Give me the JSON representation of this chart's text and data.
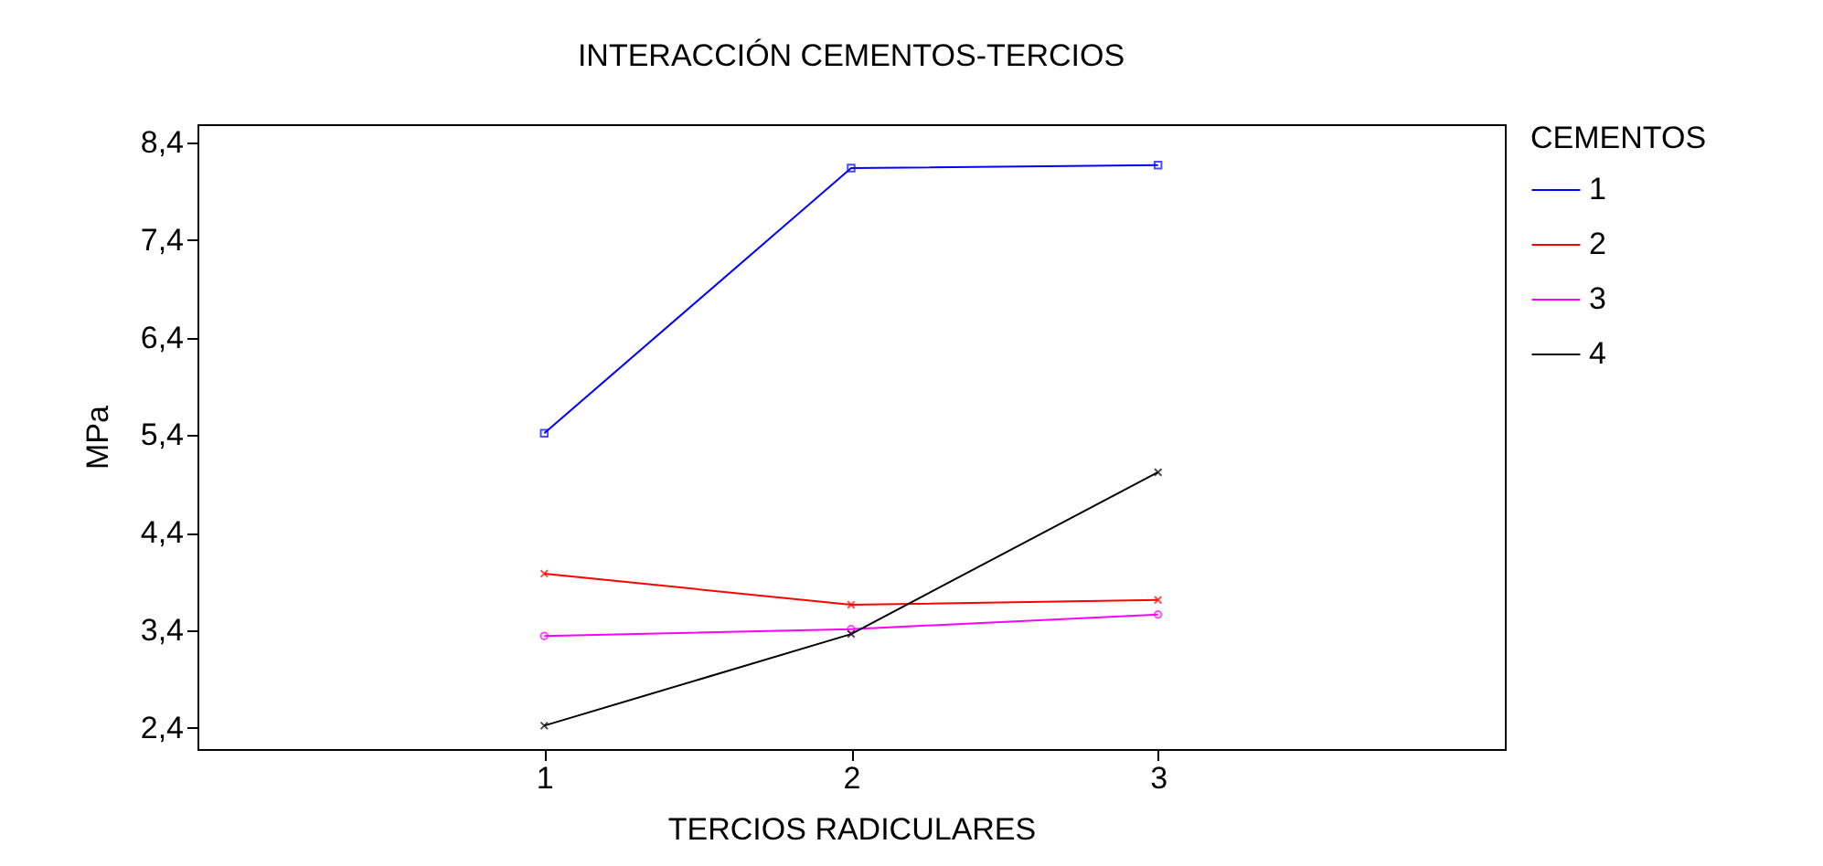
{
  "chart_data": {
    "type": "line",
    "title": "INTERACCIÓN CEMENTOS-TERCIOS",
    "xlabel": "TERCIOS RADICULARES",
    "ylabel": "MPa",
    "legend_title": "CEMENTOS",
    "x": [
      1,
      2,
      3
    ],
    "series": [
      {
        "name": "1",
        "color": "#0000ff",
        "marker": "square",
        "values": [
          5.42,
          8.14,
          8.17
        ]
      },
      {
        "name": "2",
        "color": "#ff0000",
        "marker": "cross",
        "values": [
          3.98,
          3.66,
          3.71
        ]
      },
      {
        "name": "3",
        "color": "#ff00ff",
        "marker": "circle",
        "values": [
          3.34,
          3.41,
          3.56
        ]
      },
      {
        "name": "4",
        "color": "#000000",
        "marker": "cross",
        "values": [
          2.42,
          3.36,
          5.02
        ]
      }
    ],
    "xlim": [
      -0.13,
      4.13
    ],
    "xticks": [
      1,
      2,
      3
    ],
    "ylim": [
      2.18,
      8.59
    ],
    "yticks": [
      {
        "value": 2.4,
        "label": "2,4"
      },
      {
        "value": 3.4,
        "label": "3,4"
      },
      {
        "value": 4.4,
        "label": "4,4"
      },
      {
        "value": 5.4,
        "label": "5,4"
      },
      {
        "value": 6.4,
        "label": "6,4"
      },
      {
        "value": 7.4,
        "label": "7,4"
      },
      {
        "value": 8.4,
        "label": "8,4"
      }
    ],
    "grid": false,
    "legend": "right"
  }
}
